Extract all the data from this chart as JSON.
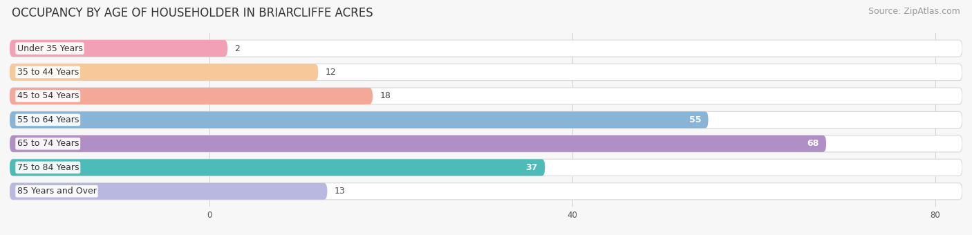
{
  "title": "OCCUPANCY BY AGE OF HOUSEHOLDER IN BRIARCLIFFE ACRES",
  "source": "Source: ZipAtlas.com",
  "categories": [
    "Under 35 Years",
    "35 to 44 Years",
    "45 to 54 Years",
    "55 to 64 Years",
    "65 to 74 Years",
    "75 to 84 Years",
    "85 Years and Over"
  ],
  "values": [
    2,
    12,
    18,
    55,
    68,
    37,
    13
  ],
  "bar_colors": [
    "#f2a0b5",
    "#f7c99a",
    "#f4a898",
    "#88b4d8",
    "#b090c4",
    "#4dbcb8",
    "#b8b8e0"
  ],
  "xlim_left": -22,
  "xlim_right": 83,
  "xticks": [
    0,
    40,
    80
  ],
  "background_color": "#f7f7f7",
  "bar_bg_color": "#ffffff",
  "bar_edge_color": "#d8d8d8",
  "grid_color": "#d0d0d0",
  "title_fontsize": 12,
  "source_fontsize": 9,
  "label_fontsize": 9,
  "value_fontsize": 9,
  "value_threshold": 30,
  "bar_height": 0.7,
  "rounding_size": 0.35,
  "label_bg_color": "#ffffff"
}
